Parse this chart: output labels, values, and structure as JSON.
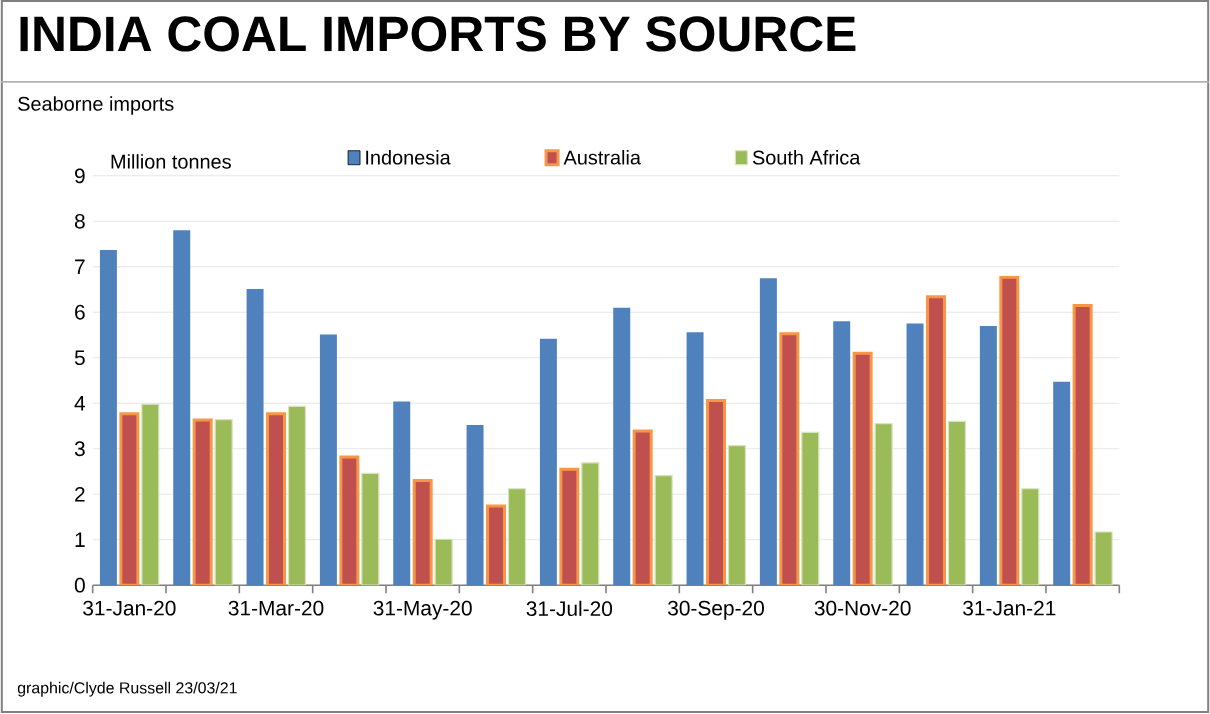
{
  "chart_data": {
    "type": "bar",
    "title": "INDIA COAL IMPORTS BY SOURCE",
    "subtitle": "Seaborne imports",
    "ylabel": "Million tonnes",
    "categories": [
      "31-Jan-20",
      null,
      "31-Mar-20",
      null,
      "31-May-20",
      null,
      "31-Jul-20",
      null,
      "30-Sep-20",
      null,
      "30-Nov-20",
      null,
      "31-Jan-21",
      null
    ],
    "series": [
      {
        "name": "Indonesia",
        "color": "#4f81bd",
        "values": [
          7.37,
          7.8,
          6.51,
          5.51,
          4.04,
          3.52,
          5.42,
          6.1,
          5.56,
          6.75,
          5.8,
          5.75,
          5.7,
          4.47
        ]
      },
      {
        "name": "Australia",
        "color": "#c0504d",
        "values": [
          3.77,
          3.63,
          3.77,
          2.82,
          2.3,
          1.74,
          2.55,
          3.39,
          4.06,
          5.53,
          5.1,
          6.34,
          6.77,
          6.15
        ]
      },
      {
        "name": "South Africa",
        "color": "#9bbb59",
        "values": [
          3.98,
          3.64,
          3.93,
          2.46,
          1.01,
          2.12,
          2.69,
          2.41,
          3.07,
          3.36,
          3.55,
          3.6,
          2.12,
          1.17
        ]
      }
    ],
    "ylim": [
      0,
      9
    ],
    "yticks": [
      0,
      1,
      2,
      3,
      4,
      5,
      6,
      7,
      8,
      9
    ],
    "grid": "y",
    "legend": "top",
    "annotations": [
      "graphic/Clyde Russell 23/03/21"
    ]
  }
}
